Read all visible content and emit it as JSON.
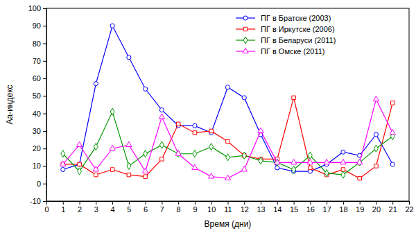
{
  "chart_data": {
    "type": "line",
    "xlabel": "Время (дни)",
    "ylabel": "Aa-индекс",
    "x": [
      1,
      2,
      3,
      4,
      5,
      6,
      7,
      8,
      9,
      10,
      11,
      12,
      13,
      14,
      15,
      16,
      17,
      18,
      19,
      20,
      21
    ],
    "series": [
      {
        "name": "ПГ в Братске (2003)",
        "color": "#0000ff",
        "marker": "circle",
        "line_style": "solid",
        "values": [
          8,
          11,
          57,
          90,
          72,
          54,
          42,
          33,
          33,
          29,
          55,
          49,
          28,
          9,
          7,
          7,
          11,
          18,
          16,
          28,
          11
        ]
      },
      {
        "name": "ПГ в Иркутске (2006)",
        "color": "#ff0000",
        "marker": "square",
        "line_style": "solid",
        "values": [
          11,
          11,
          5,
          8,
          5,
          4,
          14,
          34,
          29,
          30,
          24,
          16,
          14,
          14,
          49,
          9,
          5,
          8,
          3,
          10,
          46
        ]
      },
      {
        "name": "ПГ в Беларуси (2011)",
        "color": "#009900",
        "marker": "diamond",
        "line_style": "solid",
        "values": [
          17,
          7,
          21,
          41,
          10,
          17,
          22,
          17,
          17,
          21,
          15,
          16,
          13,
          12,
          8,
          16,
          6,
          5,
          12,
          20,
          27
        ]
      },
      {
        "name": "ПГ в Омске (2011)",
        "color": "#ff00ff",
        "marker": "triangle",
        "line_style": "solid",
        "values": [
          11,
          22,
          8,
          20,
          22,
          7,
          38,
          17,
          9,
          4,
          3,
          8,
          30,
          12,
          12,
          12,
          12,
          12,
          12,
          48,
          29
        ]
      }
    ],
    "xlim": [
      0,
      22
    ],
    "xticks": [
      0,
      1,
      2,
      3,
      4,
      5,
      6,
      7,
      8,
      9,
      10,
      11,
      12,
      13,
      14,
      15,
      16,
      17,
      18,
      19,
      20,
      21,
      22
    ],
    "ylim": [
      -10,
      100
    ],
    "yticks": [
      -10,
      0,
      10,
      20,
      30,
      40,
      50,
      60,
      70,
      80,
      90,
      100
    ],
    "grid": false,
    "legend": "upper right"
  }
}
